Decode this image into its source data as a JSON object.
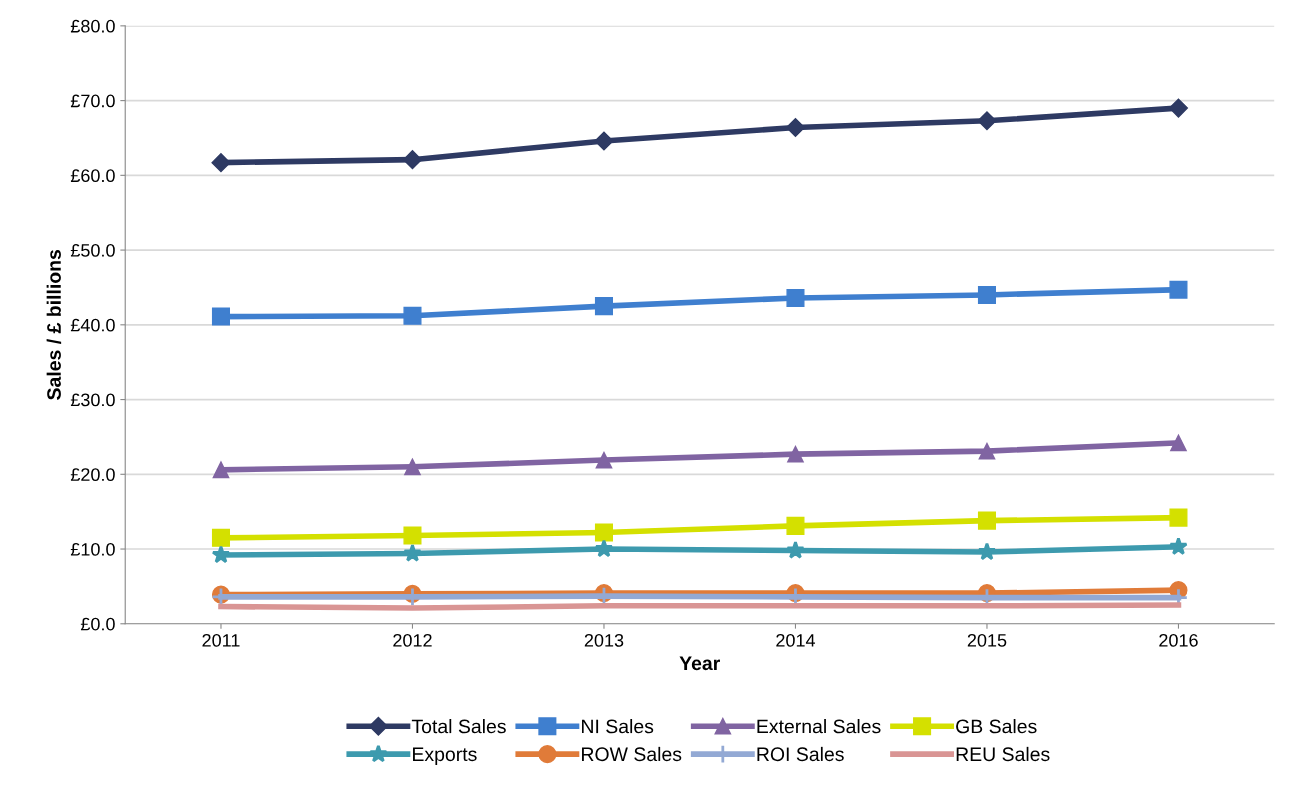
{
  "chart_data": {
    "type": "line",
    "xlabel": "Year",
    "ylabel": "Sales / £ billions",
    "categories": [
      "2011",
      "2012",
      "2013",
      "2014",
      "2015",
      "2016"
    ],
    "ylim": [
      0,
      80
    ],
    "yticks": [
      {
        "value": 0,
        "label": "£0.0"
      },
      {
        "value": 10,
        "label": "£10.0"
      },
      {
        "value": 20,
        "label": "£20.0"
      },
      {
        "value": 30,
        "label": "£30.0"
      },
      {
        "value": 40,
        "label": "£40.0"
      },
      {
        "value": 50,
        "label": "£50.0"
      },
      {
        "value": 60,
        "label": "£60.0"
      },
      {
        "value": 70,
        "label": "£70.0"
      },
      {
        "value": 80,
        "label": "£80.0"
      }
    ],
    "grid": "y",
    "legend": "bottom",
    "series": [
      {
        "name": "Total Sales",
        "color": "#2e3a63",
        "marker": "diamond",
        "values": [
          61.7,
          62.1,
          64.6,
          66.4,
          67.3,
          69.0
        ]
      },
      {
        "name": "NI Sales",
        "color": "#3f7fcf",
        "marker": "square",
        "values": [
          41.1,
          41.2,
          42.5,
          43.6,
          44.0,
          44.7
        ]
      },
      {
        "name": "External Sales",
        "color": "#8064a2",
        "marker": "triangle",
        "values": [
          20.6,
          21.0,
          21.9,
          22.7,
          23.1,
          24.2
        ]
      },
      {
        "name": "GB Sales",
        "color": "#d4e000",
        "marker": "square",
        "values": [
          11.5,
          11.8,
          12.2,
          13.1,
          13.8,
          14.2
        ]
      },
      {
        "name": "Exports",
        "color": "#3d9aae",
        "marker": "star",
        "values": [
          9.2,
          9.4,
          10.0,
          9.8,
          9.6,
          10.3
        ]
      },
      {
        "name": "ROW Sales",
        "color": "#e07b39",
        "marker": "circle",
        "values": [
          3.9,
          4.0,
          4.1,
          4.1,
          4.1,
          4.5
        ]
      },
      {
        "name": "ROI Sales",
        "color": "#93a9d4",
        "marker": "cross",
        "values": [
          3.6,
          3.6,
          3.7,
          3.6,
          3.5,
          3.5
        ]
      },
      {
        "name": "REU Sales",
        "color": "#d99594",
        "marker": "none",
        "values": [
          2.3,
          2.1,
          2.4,
          2.4,
          2.4,
          2.5
        ]
      }
    ]
  }
}
